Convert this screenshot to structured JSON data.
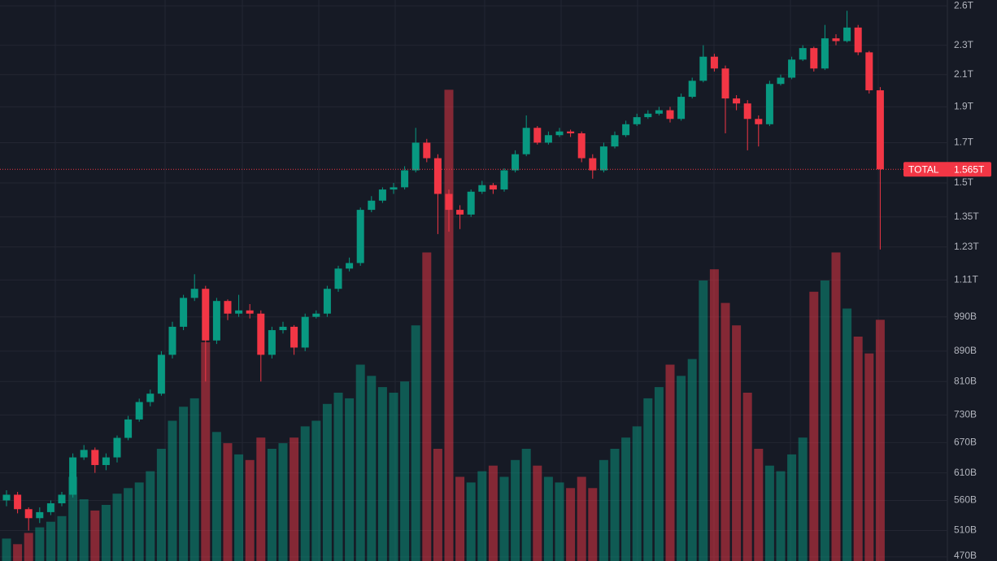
{
  "chart_data": {
    "type": "candlestick",
    "log_scale": true,
    "grid": true,
    "up_color": "#089981",
    "down_color": "#f23645",
    "volume_up_color": "rgba(8,153,129,0.5)",
    "volume_down_color": "rgba(242,54,69,0.5)",
    "ylim": [
      464,
      2647
    ],
    "yticks": [
      {
        "value": 2600,
        "label": "2.6T"
      },
      {
        "value": 2300,
        "label": "2.3T"
      },
      {
        "value": 2100,
        "label": "2.1T"
      },
      {
        "value": 1900,
        "label": "1.9T"
      },
      {
        "value": 1700,
        "label": "1.7T"
      },
      {
        "value": 1500,
        "label": "1.5T"
      },
      {
        "value": 1350,
        "label": "1.35T"
      },
      {
        "value": 1230,
        "label": "1.23T"
      },
      {
        "value": 1110,
        "label": "1.11T"
      },
      {
        "value": 990,
        "label": "990B"
      },
      {
        "value": 890,
        "label": "890B"
      },
      {
        "value": 810,
        "label": "810B"
      },
      {
        "value": 730,
        "label": "730B"
      },
      {
        "value": 670,
        "label": "670B"
      },
      {
        "value": 610,
        "label": "610B"
      },
      {
        "value": 560,
        "label": "560B"
      },
      {
        "value": 510,
        "label": "510B"
      },
      {
        "value": 470,
        "label": "470B"
      }
    ],
    "open": [
      560,
      570,
      545,
      530,
      540,
      555,
      570,
      640,
      655,
      625,
      640,
      680,
      720,
      760,
      780,
      880,
      960,
      1050,
      1080,
      920,
      1040,
      1000,
      1010,
      1000,
      880,
      950,
      960,
      900,
      990,
      1000,
      1080,
      1150,
      1170,
      1380,
      1420,
      1470,
      1480,
      1560,
      1700,
      1620,
      1450,
      1380,
      1360,
      1460,
      1490,
      1470,
      1560,
      1640,
      1780,
      1700,
      1740,
      1760,
      1750,
      1620,
      1560,
      1680,
      1740,
      1800,
      1840,
      1860,
      1880,
      1830,
      1960,
      2060,
      2220,
      2140,
      1950,
      1920,
      1830,
      1800,
      2040,
      2080,
      2200,
      2280,
      2140,
      2350,
      2330,
      2430,
      2250,
      2000
    ],
    "high": [
      578,
      575,
      548,
      548,
      560,
      575,
      648,
      665,
      660,
      648,
      685,
      728,
      768,
      790,
      890,
      975,
      1060,
      1130,
      1090,
      1050,
      1045,
      1060,
      1030,
      1010,
      960,
      975,
      965,
      1000,
      1010,
      1090,
      1160,
      1190,
      1390,
      1440,
      1480,
      1500,
      1580,
      1780,
      1720,
      1640,
      1470,
      1400,
      1470,
      1510,
      1500,
      1570,
      1660,
      1850,
      1790,
      1760,
      1780,
      1770,
      1760,
      1640,
      1700,
      1760,
      1820,
      1860,
      1880,
      1900,
      1900,
      1980,
      2080,
      2300,
      2240,
      2160,
      1970,
      1940,
      1850,
      2060,
      2100,
      2220,
      2300,
      2290,
      2450,
      2380,
      2560,
      2450,
      2260,
      2020
    ],
    "low": [
      550,
      538,
      510,
      522,
      535,
      550,
      565,
      635,
      610,
      615,
      630,
      675,
      715,
      750,
      775,
      870,
      950,
      1040,
      810,
      910,
      980,
      990,
      985,
      810,
      870,
      940,
      880,
      890,
      985,
      990,
      1070,
      1140,
      1160,
      1370,
      1410,
      1450,
      1470,
      1550,
      1600,
      1280,
      1290,
      1300,
      1350,
      1450,
      1450,
      1460,
      1550,
      1630,
      1690,
      1690,
      1730,
      1730,
      1600,
      1520,
      1550,
      1670,
      1730,
      1790,
      1830,
      1850,
      1810,
      1820,
      1950,
      2050,
      2120,
      1750,
      1880,
      1660,
      1680,
      1790,
      2030,
      2070,
      2190,
      2120,
      2130,
      2300,
      2320,
      2230,
      1980,
      1220
    ],
    "close": [
      570,
      545,
      530,
      540,
      555,
      570,
      640,
      655,
      625,
      640,
      680,
      720,
      760,
      780,
      880,
      960,
      1050,
      1080,
      920,
      1040,
      1000,
      1010,
      1000,
      880,
      950,
      960,
      900,
      990,
      1000,
      1080,
      1150,
      1170,
      1380,
      1420,
      1470,
      1480,
      1560,
      1700,
      1620,
      1450,
      1380,
      1360,
      1460,
      1490,
      1470,
      1560,
      1640,
      1780,
      1700,
      1740,
      1760,
      1750,
      1620,
      1560,
      1680,
      1740,
      1800,
      1840,
      1860,
      1880,
      1830,
      1960,
      2060,
      2220,
      2140,
      1950,
      1920,
      1830,
      1800,
      2040,
      2080,
      2200,
      2280,
      2140,
      2350,
      2330,
      2430,
      2250,
      2000,
      1565
    ],
    "vlim": [
      0,
      200
    ],
    "volume": [
      8,
      6,
      10,
      12,
      14,
      16,
      30,
      22,
      18,
      20,
      24,
      26,
      28,
      32,
      40,
      50,
      55,
      58,
      78,
      46,
      42,
      38,
      36,
      44,
      40,
      42,
      44,
      48,
      50,
      56,
      60,
      58,
      70,
      66,
      62,
      60,
      64,
      84,
      110,
      40,
      168,
      30,
      28,
      32,
      34,
      30,
      36,
      40,
      34,
      30,
      28,
      26,
      30,
      26,
      36,
      40,
      44,
      48,
      58,
      62,
      70,
      66,
      72,
      100,
      104,
      92,
      84,
      60,
      40,
      34,
      32,
      38,
      44,
      96,
      100,
      110,
      90,
      80,
      74,
      86
    ],
    "last_price": {
      "name": "TOTAL",
      "value": 1565,
      "label": "1.565T"
    }
  }
}
